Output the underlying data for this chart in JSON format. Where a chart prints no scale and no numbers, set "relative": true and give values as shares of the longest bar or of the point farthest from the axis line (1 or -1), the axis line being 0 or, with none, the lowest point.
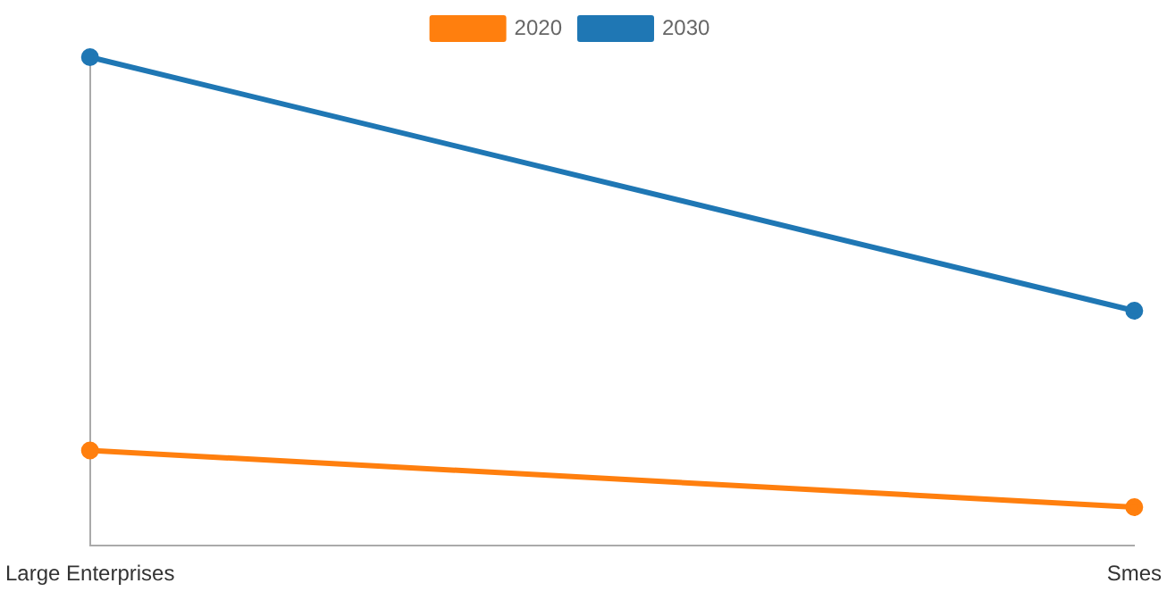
{
  "chart_data": {
    "type": "line",
    "relative": true,
    "categories": [
      "Large Enterprises",
      "Smes"
    ],
    "series": [
      {
        "name": "2020",
        "color": "#ff7f0e",
        "values": [
          0.195,
          0.079
        ]
      },
      {
        "name": "2030",
        "color": "#1f77b4",
        "values": [
          1,
          0.481
        ]
      }
    ],
    "legend": "top",
    "marker": "circle",
    "line_style": "solid"
  }
}
